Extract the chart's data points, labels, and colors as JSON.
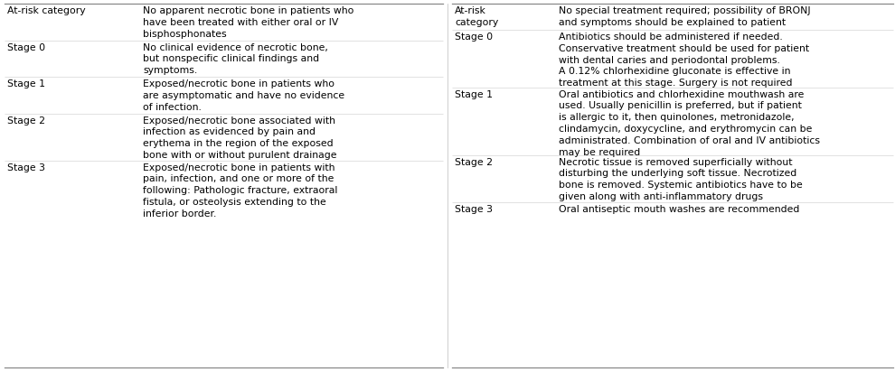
{
  "bg_color": "#ffffff",
  "text_color": "#000000",
  "line_color": "#888888",
  "font_size": 7.8,
  "left_table": {
    "rows": [
      {
        "col1": "At-risk category",
        "col2": "No apparent necrotic bone in patients who\nhave been treated with either oral or IV\nbisphosphonates"
      },
      {
        "col1": "Stage 0",
        "col2": "No clinical evidence of necrotic bone,\nbut nonspecific clinical findings and\nsymptoms."
      },
      {
        "col1": "Stage 1",
        "col2": "Exposed/necrotic bone in patients who\nare asymptomatic and have no evidence\nof infection."
      },
      {
        "col1": "Stage 2",
        "col2": "Exposed/necrotic bone associated with\ninfection as evidenced by pain and\nerythema in the region of the exposed\nbone with or without purulent drainage"
      },
      {
        "col1": "Stage 3",
        "col2": "Exposed/necrotic bone in patients with\npain, infection, and one or more of the\nfollowing: Pathologic fracture, extraoral\nfistula, or osteolysis extending to the\ninferior border."
      }
    ]
  },
  "right_table": {
    "rows": [
      {
        "col1": "At-risk\ncategory",
        "col2": "No special treatment required; possibility of BRONJ\nand symptoms should be explained to patient"
      },
      {
        "col1": "Stage 0",
        "col2": "Antibiotics should be administered if needed.\nConservative treatment should be used for patient\nwith dental caries and periodontal problems.\nA 0.12% chlorhexidine gluconate is effective in\ntreatment at this stage. Surgery is not required"
      },
      {
        "col1": "Stage 1",
        "col2": "Oral antibiotics and chlorhexidine mouthwash are\nused. Usually penicillin is preferred, but if patient\nis allergic to it, then quinolones, metronidazole,\nclindamycin, doxycycline, and erythromycin can be\nadministrated. Combination of oral and IV antibiotics\nmay be required"
      },
      {
        "col1": "Stage 2",
        "col2": "Necrotic tissue is removed superficially without\ndisturbing the underlying soft tissue. Necrotized\nbone is removed. Systemic antibiotics have to be\ngiven along with anti-inflammatory drugs"
      },
      {
        "col1": "Stage 3",
        "col2": "Oral antiseptic mouth washes are recommended"
      }
    ]
  }
}
